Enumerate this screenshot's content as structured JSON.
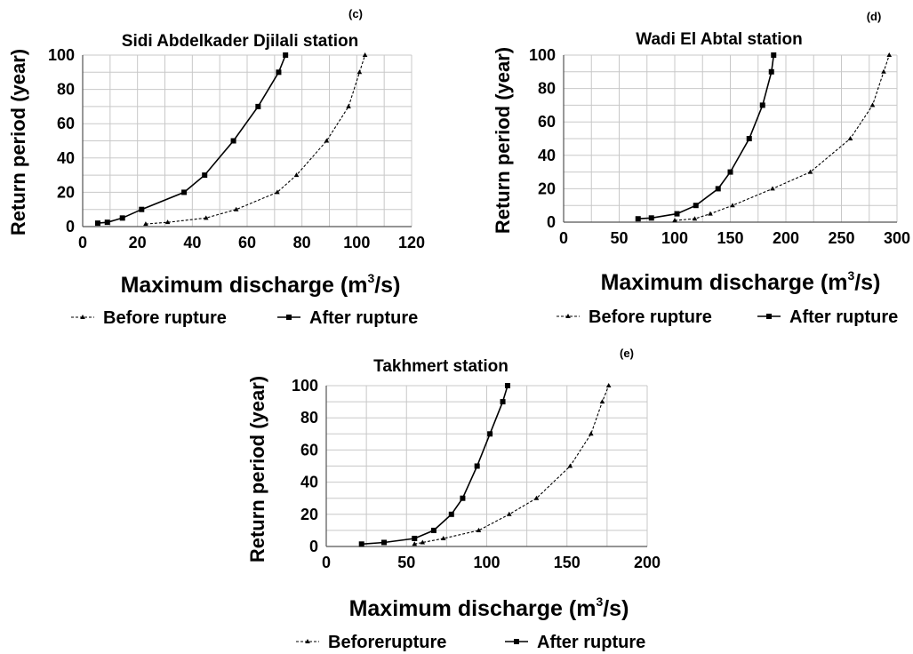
{
  "chart_data": [
    {
      "type": "line",
      "panel_label": "(c)",
      "title": "Sidi Abdelkader Djilali station",
      "xlabel_prefix": "Maximum discharge (m",
      "xlabel_sup": "3",
      "xlabel_suffix": "/s)",
      "ylabel": "Return period (year)",
      "xlim": [
        0,
        120
      ],
      "ylim": [
        0,
        100
      ],
      "xticks": [
        0,
        20,
        40,
        60,
        80,
        100,
        120
      ],
      "yticks": [
        0,
        20,
        40,
        60,
        80,
        100
      ],
      "grid": true,
      "legend_position": "bottom",
      "series": [
        {
          "name": "Before rupture",
          "style": "dashed",
          "marker": "triangle",
          "points": [
            [
              23,
              1.5
            ],
            [
              31,
              2.5
            ],
            [
              45,
              5
            ],
            [
              56,
              10
            ],
            [
              71,
              20
            ],
            [
              78,
              30
            ],
            [
              89,
              50
            ],
            [
              97,
              70
            ],
            [
              101,
              90
            ],
            [
              103,
              100
            ]
          ]
        },
        {
          "name": "After rupture",
          "style": "solid",
          "marker": "square",
          "points": [
            [
              5.5,
              2
            ],
            [
              9,
              2.5
            ],
            [
              14.5,
              5
            ],
            [
              21.5,
              10
            ],
            [
              37,
              20
            ],
            [
              44.5,
              30
            ],
            [
              55,
              50
            ],
            [
              64,
              70
            ],
            [
              71.5,
              90
            ],
            [
              74,
              100
            ]
          ]
        }
      ]
    },
    {
      "type": "line",
      "panel_label": "(d)",
      "title": "Wadi El Abtal station",
      "xlabel_prefix": "Maximum discharge (m",
      "xlabel_sup": "3",
      "xlabel_suffix": "/s)",
      "ylabel": "Return period (year)",
      "xlim": [
        0,
        300
      ],
      "ylim": [
        0,
        100
      ],
      "xticks": [
        0,
        50,
        100,
        150,
        200,
        250,
        300
      ],
      "yticks": [
        0,
        20,
        40,
        60,
        80,
        100
      ],
      "grid": true,
      "legend_position": "bottom",
      "series": [
        {
          "name": "Before rupture",
          "style": "dashed",
          "marker": "triangle",
          "points": [
            [
              100,
              1
            ],
            [
              118,
              2
            ],
            [
              132,
              5
            ],
            [
              152,
              10
            ],
            [
              188,
              20
            ],
            [
              222,
              30
            ],
            [
              258,
              50
            ],
            [
              278,
              70
            ],
            [
              288,
              90
            ],
            [
              293,
              100
            ]
          ]
        },
        {
          "name": "After rupture",
          "style": "solid",
          "marker": "square",
          "points": [
            [
              67,
              2
            ],
            [
              79,
              2.5
            ],
            [
              102,
              5
            ],
            [
              119,
              10
            ],
            [
              139,
              20
            ],
            [
              150,
              30
            ],
            [
              167,
              50
            ],
            [
              179,
              70
            ],
            [
              187,
              90
            ],
            [
              189,
              100
            ]
          ]
        }
      ]
    },
    {
      "type": "line",
      "panel_label": "(e)",
      "title": "Takhmert station",
      "xlabel_prefix": "Maximum discharge (m",
      "xlabel_sup": "3",
      "xlabel_suffix": "/s)",
      "ylabel": "Return period (year)",
      "xlim": [
        0,
        200
      ],
      "ylim": [
        0,
        100
      ],
      "xticks": [
        0,
        50,
        100,
        150,
        200
      ],
      "yticks": [
        0,
        20,
        40,
        60,
        80,
        100
      ],
      "grid": true,
      "legend_position": "bottom",
      "series": [
        {
          "name": "Beforerupture",
          "style": "dashed",
          "marker": "triangle",
          "points": [
            [
              55,
              1.5
            ],
            [
              60,
              2.5
            ],
            [
              73,
              5
            ],
            [
              95,
              10
            ],
            [
              114,
              20
            ],
            [
              131,
              30
            ],
            [
              152,
              50
            ],
            [
              165,
              70
            ],
            [
              172,
              90
            ],
            [
              176,
              100
            ]
          ]
        },
        {
          "name": "After rupture",
          "style": "solid",
          "marker": "square",
          "points": [
            [
              22,
              1.5
            ],
            [
              36,
              2.5
            ],
            [
              55,
              5
            ],
            [
              67,
              10
            ],
            [
              78,
              20
            ],
            [
              85,
              30
            ],
            [
              94,
              50
            ],
            [
              102,
              70
            ],
            [
              110,
              90
            ],
            [
              113,
              100
            ]
          ]
        }
      ]
    }
  ]
}
